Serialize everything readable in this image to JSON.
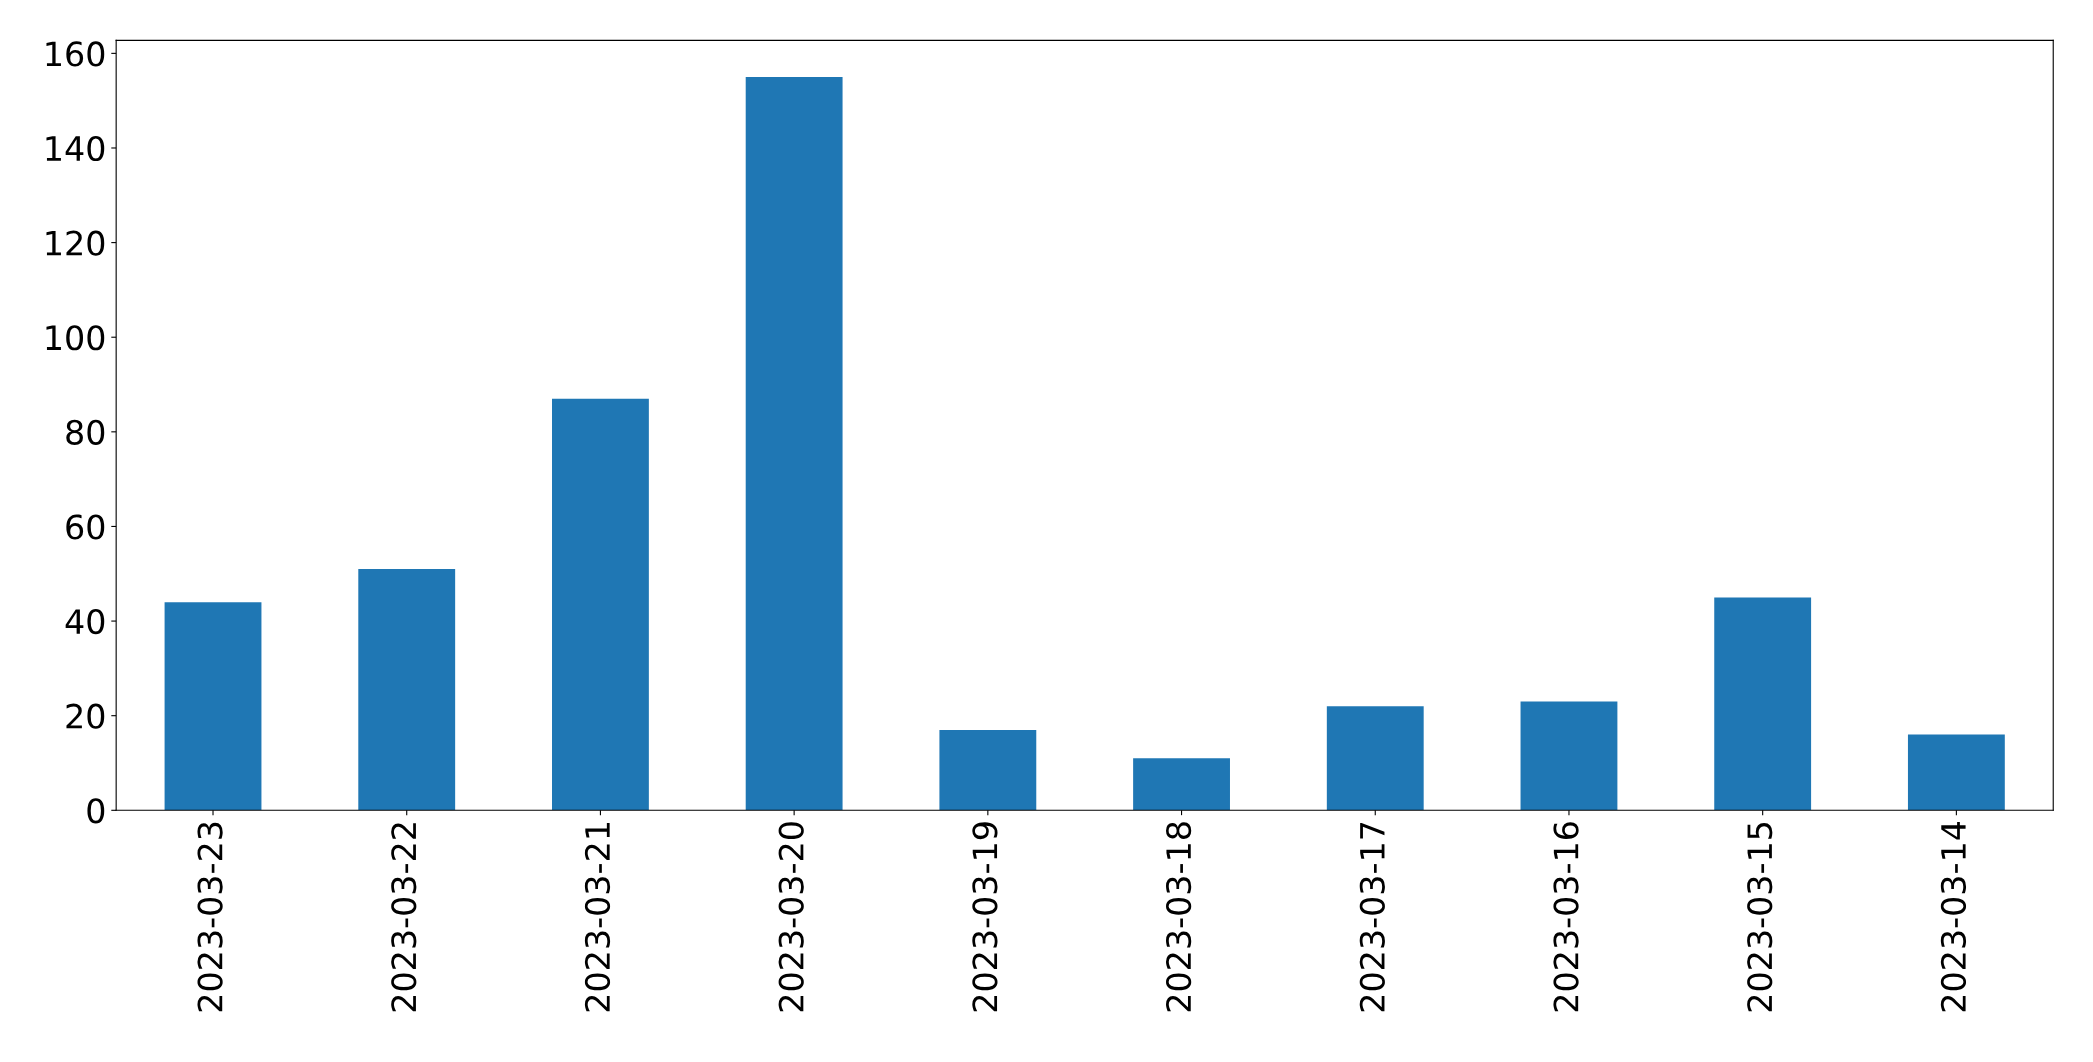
{
  "chart_data": {
    "type": "bar",
    "categories": [
      "2023-03-23",
      "2023-03-22",
      "2023-03-21",
      "2023-03-20",
      "2023-03-19",
      "2023-03-18",
      "2023-03-17",
      "2023-03-16",
      "2023-03-15",
      "2023-03-14"
    ],
    "values": [
      44,
      51,
      87,
      155,
      17,
      11,
      22,
      23,
      45,
      16
    ],
    "color": "#1f77b4",
    "ylim": [
      0,
      162.75
    ],
    "yticks": [
      0,
      20,
      40,
      60,
      80,
      100,
      120,
      140,
      160
    ],
    "grid": false,
    "legend": false
  }
}
